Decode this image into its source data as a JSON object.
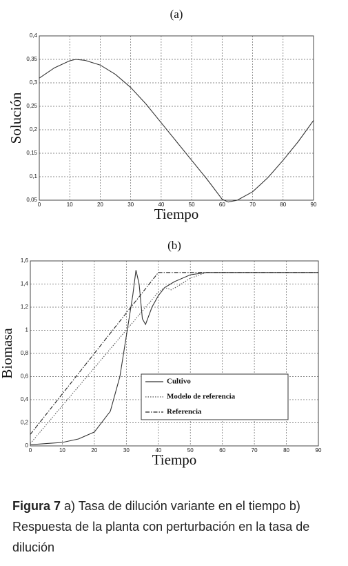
{
  "chart_data": [
    {
      "type": "line",
      "title": "(a)",
      "x_label": "Tiempo",
      "y_label": "Solución",
      "xlim": [
        0,
        90
      ],
      "xticks": [
        0,
        10,
        20,
        30,
        40,
        50,
        60,
        70,
        80,
        90
      ],
      "ylim": [
        0.05,
        0.4
      ],
      "yticks": [
        {
          "value": 0.05,
          "label": "0,05"
        },
        {
          "value": 0.1,
          "label": "0,1"
        },
        {
          "value": 0.15,
          "label": "0,15"
        },
        {
          "value": 0.2,
          "label": "0,2"
        },
        {
          "value": 0.25,
          "label": "0,25"
        },
        {
          "value": 0.3,
          "label": "0,3"
        },
        {
          "value": 0.35,
          "label": "0,35"
        },
        {
          "value": 0.4,
          "label": "0,4"
        }
      ],
      "grid": true,
      "series": [
        {
          "color": "#333333",
          "style": "solid",
          "x": [
            0,
            5,
            10,
            12,
            15,
            20,
            25,
            30,
            35,
            40,
            45,
            50,
            55,
            60,
            62,
            65,
            70,
            75,
            80,
            85,
            90
          ],
          "values": [
            0.31,
            0.332,
            0.347,
            0.35,
            0.348,
            0.338,
            0.318,
            0.29,
            0.255,
            0.215,
            0.175,
            0.135,
            0.095,
            0.052,
            0.046,
            0.05,
            0.068,
            0.098,
            0.135,
            0.175,
            0.22
          ]
        }
      ]
    },
    {
      "type": "line",
      "title": "(b)",
      "x_label": "Tiempo",
      "y_label": "Biomasa",
      "xlim": [
        0,
        90
      ],
      "xticks": [
        0,
        10,
        20,
        30,
        40,
        50,
        60,
        70,
        80,
        90
      ],
      "ylim": [
        0,
        1.6
      ],
      "yticks": [
        0,
        {
          "value": 0.2,
          "label": "0,2"
        },
        {
          "value": 0.4,
          "label": "0,4"
        },
        {
          "value": 0.6,
          "label": "0,6"
        },
        {
          "value": 0.8,
          "label": "0,8"
        },
        1,
        {
          "value": 1.2,
          "label": "1,2"
        },
        {
          "value": 1.4,
          "label": "1,4"
        },
        {
          "value": 1.6,
          "label": "1,6"
        }
      ],
      "grid": true,
      "legend": "lower right",
      "series": [
        {
          "name": "Cultivo",
          "color": "#333333",
          "style": "solid",
          "x": [
            0,
            5,
            10,
            15,
            20,
            25,
            28,
            30,
            32,
            33,
            34,
            35,
            36,
            38,
            40,
            42,
            45,
            50,
            55,
            60,
            90
          ],
          "values": [
            0.01,
            0.02,
            0.03,
            0.06,
            0.12,
            0.3,
            0.6,
            0.95,
            1.3,
            1.52,
            1.4,
            1.1,
            1.05,
            1.2,
            1.3,
            1.37,
            1.42,
            1.48,
            1.5,
            1.5,
            1.5
          ]
        },
        {
          "name": "Modelo de referencia",
          "color": "#555555",
          "style": "dotted",
          "x": [
            0,
            40,
            42,
            44,
            46,
            50,
            55,
            90
          ],
          "values": [
            0.02,
            1.33,
            1.37,
            1.35,
            1.38,
            1.45,
            1.5,
            1.5
          ]
        },
        {
          "name": "Referencia",
          "color": "#222222",
          "style": "dashdot",
          "x": [
            0,
            40,
            90
          ],
          "values": [
            0.1,
            1.5,
            1.5
          ]
        }
      ]
    }
  ],
  "caption": {
    "label": "Figura 7",
    "text": "a) Tasa de dilución variante en el tiempo b) Respuesta de la planta con perturbación en la tasa de dilución"
  }
}
